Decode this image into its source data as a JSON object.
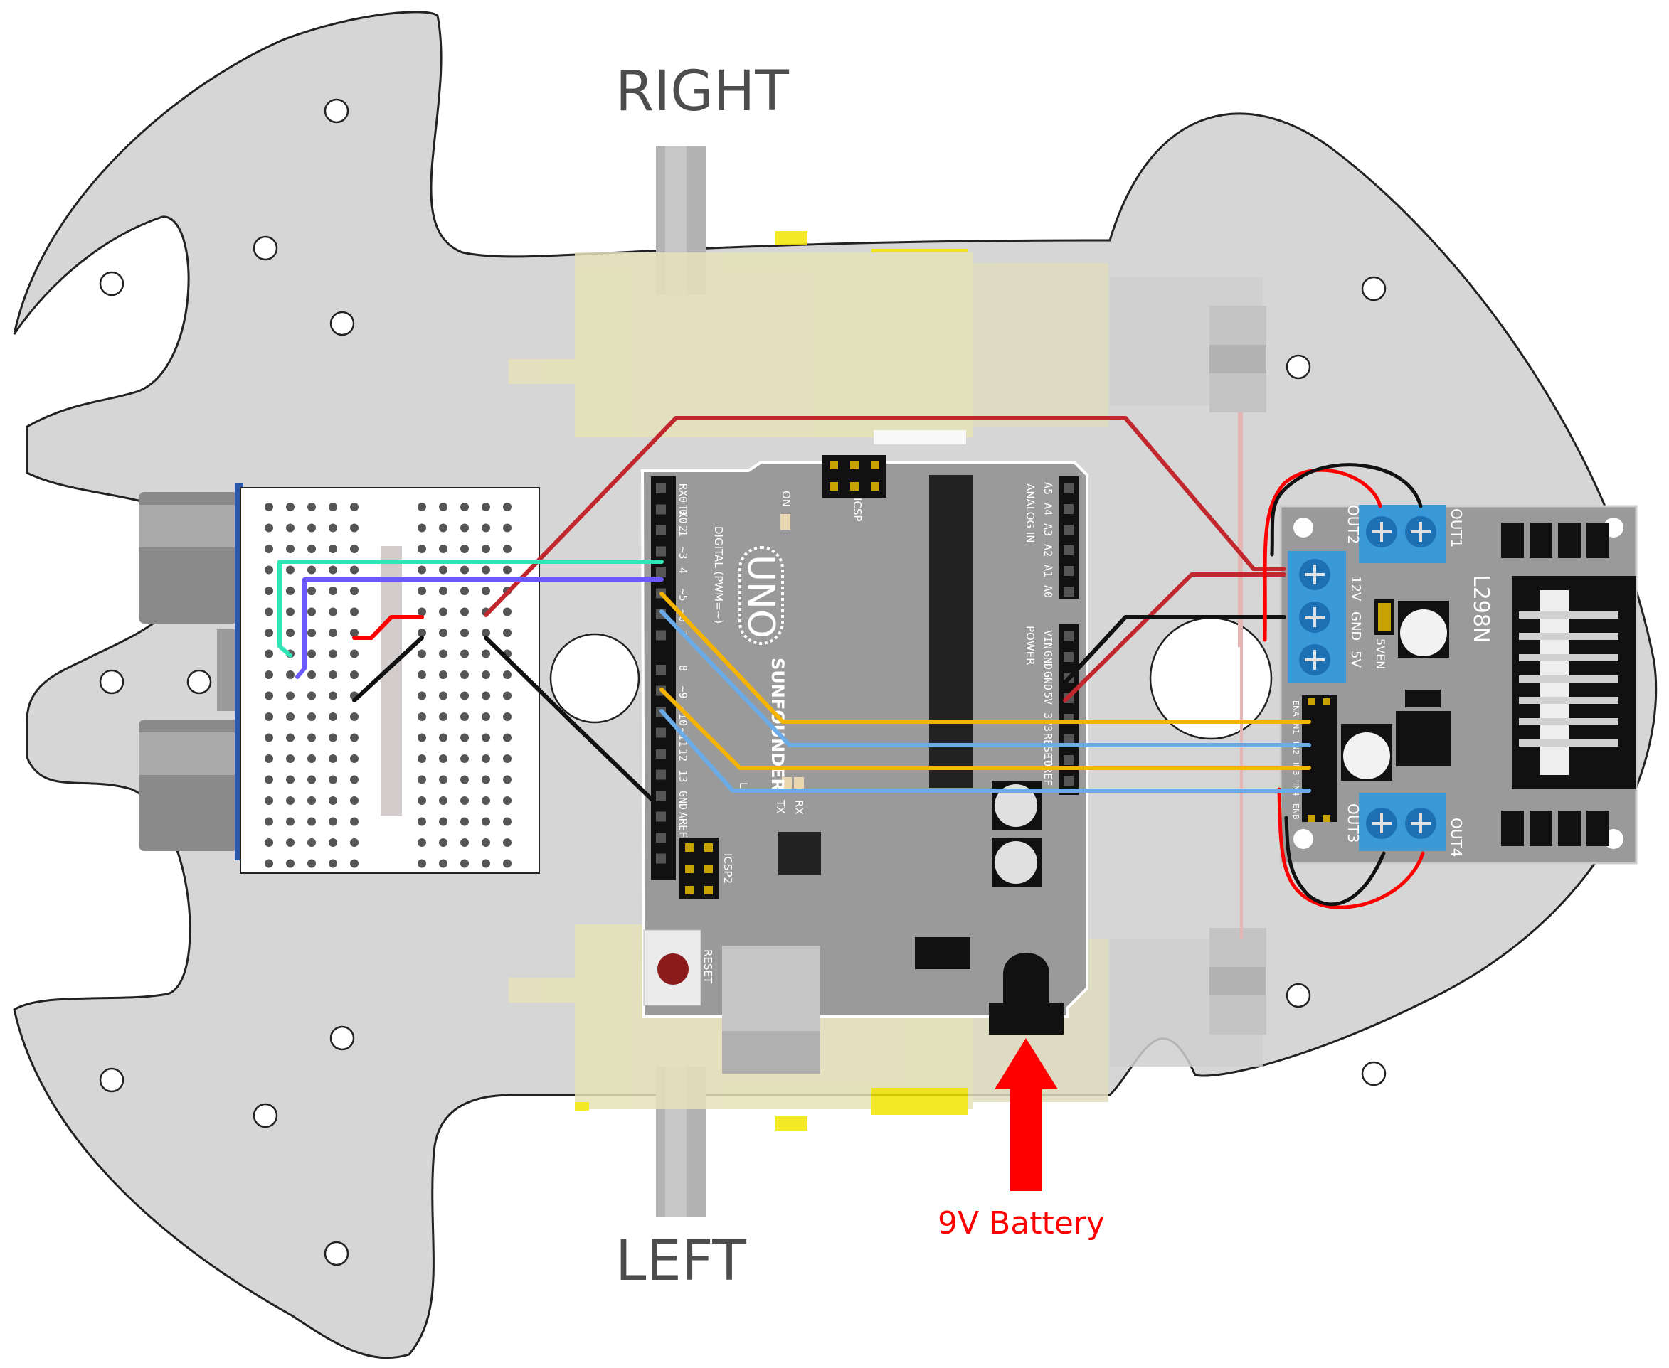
{
  "labels": {
    "right": "RIGHT",
    "left": "LEFT",
    "battery": "9V Battery"
  },
  "uno": {
    "name": "UNO",
    "brand": "SUNFOUNDER",
    "digital_header": "DIGITAL (PWM=~)",
    "analog_header": "ANALOG IN",
    "power_header": "POWER",
    "icsp": "ICSP",
    "icsp2": "ICSP2",
    "reset": "RESET",
    "on": "ON",
    "tx": "TX",
    "rx": "RX",
    "l": "L",
    "aref": "AREF",
    "gnd": "GND",
    "digital_pins": [
      "RX0 0",
      "TX0 1",
      "2",
      "~3",
      "4",
      "~5",
      "~6",
      "7",
      "8",
      "~9",
      "~10",
      "~11",
      "12",
      "13"
    ],
    "analog_pins": [
      "A5",
      "A4",
      "A3",
      "A2",
      "A1",
      "A0"
    ],
    "power_pins": [
      "VIN",
      "GND",
      "GND",
      "5V",
      "3V3",
      "RESET",
      "IOREF"
    ]
  },
  "driver": {
    "chip": "L298N",
    "out1": "OUT1",
    "out2": "OUT2",
    "out3": "OUT3",
    "out4": "OUT4",
    "v12": "12V",
    "gnd": "GND",
    "v5": "5V",
    "v5en": "5VEN",
    "pins": [
      "ENA",
      "IN1",
      "IN2",
      "IN3",
      "IN4",
      "ENB"
    ]
  },
  "colors": {
    "chassis": "#d6d6d6",
    "board": "#9a9a9a",
    "terminal": "#3a9ad9",
    "wire_red": "#c1272d",
    "wire_black": "#111111",
    "wire_orange": "#f5b400",
    "wire_blue": "#6aabe8",
    "wire_teal": "#2ee6b6",
    "wire_purple": "#6b5bff",
    "battery_arrow": "#ff0000"
  }
}
